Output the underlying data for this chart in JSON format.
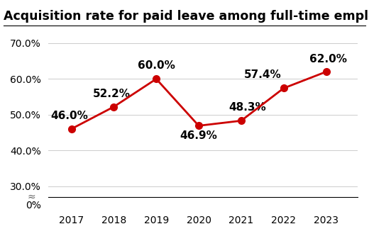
{
  "title": "Acquisition rate for paid leave among full-time employees",
  "years": [
    2017,
    2018,
    2019,
    2020,
    2021,
    2022,
    2023
  ],
  "values": [
    46.0,
    52.2,
    60.0,
    46.9,
    48.3,
    57.4,
    62.0
  ],
  "labels": [
    "46.0%",
    "52.2%",
    "60.0%",
    "46.9%",
    "48.3%",
    "57.4%",
    "62.0%"
  ],
  "line_color": "#cc0000",
  "marker_color": "#cc0000",
  "background_color": "#ffffff",
  "grid_color": "#cccccc",
  "title_fontsize": 12.5,
  "label_fontsize": 11,
  "tick_fontsize": 10,
  "approx_symbol": "≈",
  "xlim": [
    2016.45,
    2023.75
  ]
}
